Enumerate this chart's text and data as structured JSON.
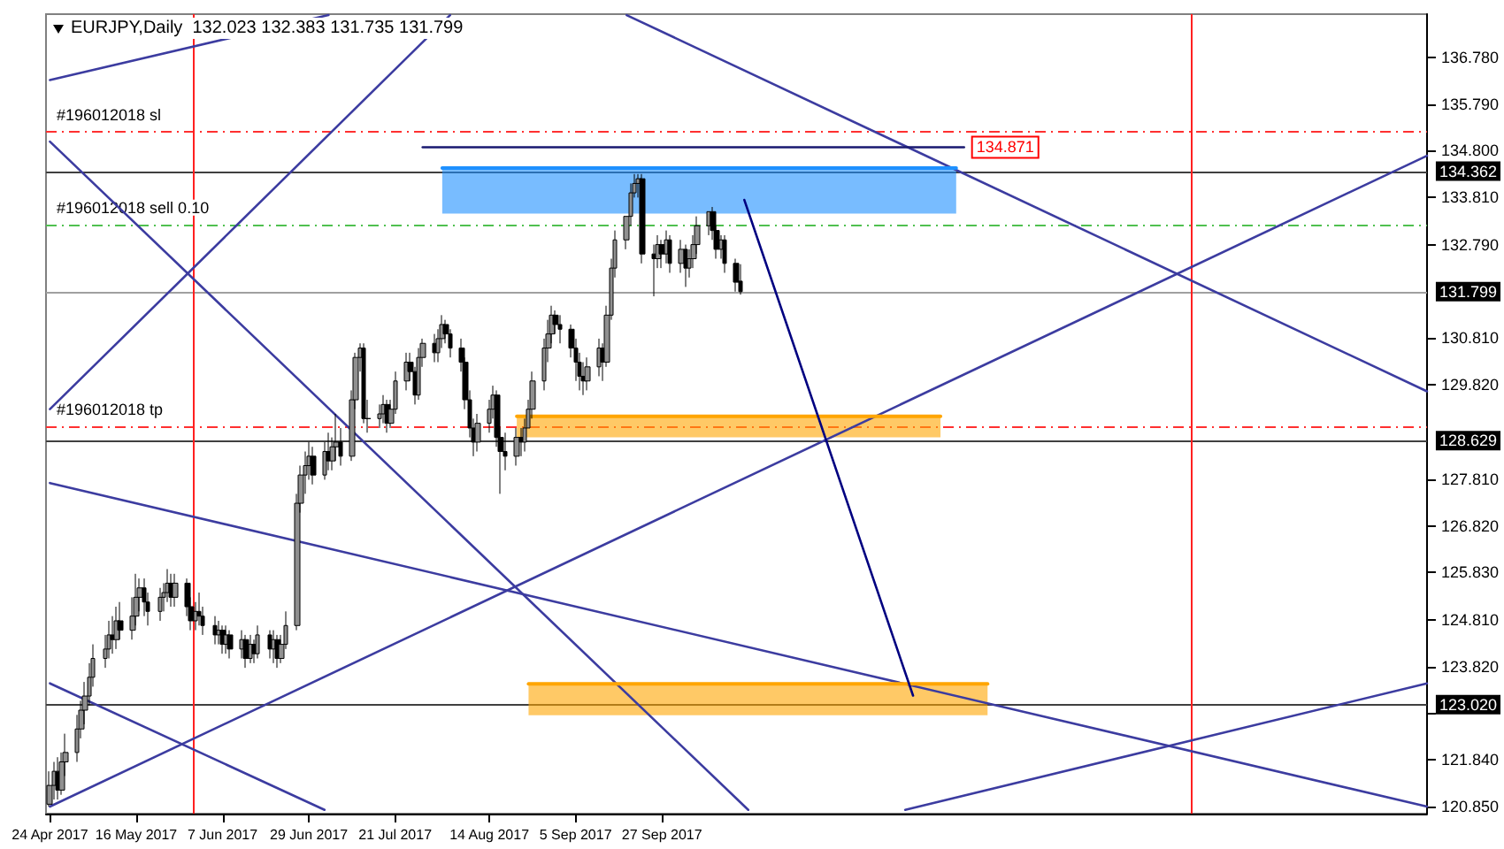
{
  "chart_data": {
    "type": "candlestick",
    "title": "EURJPY,Daily  132.023 132.383 131.735 131.799",
    "x": [
      "2017-04-24",
      "2017-04-25",
      "2017-04-26",
      "2017-04-27",
      "2017-04-28",
      "2017-05-01",
      "2017-05-02",
      "2017-05-03",
      "2017-05-04",
      "2017-05-05",
      "2017-05-08",
      "2017-05-09",
      "2017-05-10",
      "2017-05-11",
      "2017-05-12",
      "2017-05-15",
      "2017-05-16",
      "2017-05-17",
      "2017-05-18",
      "2017-05-19",
      "2017-05-22",
      "2017-05-23",
      "2017-05-24",
      "2017-05-25",
      "2017-05-26",
      "2017-05-29",
      "2017-05-30",
      "2017-05-31",
      "2017-06-01",
      "2017-06-02",
      "2017-06-05",
      "2017-06-06",
      "2017-06-07",
      "2017-06-08",
      "2017-06-09",
      "2017-06-12",
      "2017-06-13",
      "2017-06-14",
      "2017-06-15",
      "2017-06-16",
      "2017-06-19",
      "2017-06-20",
      "2017-06-21",
      "2017-06-22",
      "2017-06-23",
      "2017-06-26",
      "2017-06-27",
      "2017-06-28",
      "2017-06-29",
      "2017-06-30",
      "2017-07-03",
      "2017-07-04",
      "2017-07-05",
      "2017-07-06",
      "2017-07-07",
      "2017-07-10",
      "2017-07-11",
      "2017-07-12",
      "2017-07-13",
      "2017-07-14",
      "2017-07-17",
      "2017-07-18",
      "2017-07-19",
      "2017-07-20",
      "2017-07-21",
      "2017-07-24",
      "2017-07-25",
      "2017-07-26",
      "2017-07-27",
      "2017-07-28",
      "2017-07-31",
      "2017-08-01",
      "2017-08-02",
      "2017-08-03",
      "2017-08-04",
      "2017-08-07",
      "2017-08-08",
      "2017-08-09",
      "2017-08-10",
      "2017-08-11",
      "2017-08-14",
      "2017-08-15",
      "2017-08-16",
      "2017-08-17",
      "2017-08-18",
      "2017-08-21",
      "2017-08-22",
      "2017-08-23",
      "2017-08-24",
      "2017-08-25",
      "2017-08-28",
      "2017-08-29",
      "2017-08-30",
      "2017-08-31",
      "2017-09-01",
      "2017-09-04",
      "2017-09-05",
      "2017-09-06",
      "2017-09-07",
      "2017-09-08",
      "2017-09-11",
      "2017-09-12",
      "2017-09-13",
      "2017-09-14",
      "2017-09-15",
      "2017-09-18",
      "2017-09-19",
      "2017-09-20",
      "2017-09-21",
      "2017-09-22",
      "2017-09-25",
      "2017-09-26",
      "2017-09-27",
      "2017-09-28",
      "2017-09-29",
      "2017-10-02",
      "2017-10-03",
      "2017-10-04",
      "2017-10-05",
      "2017-10-06",
      "2017-10-09",
      "2017-10-10",
      "2017-10-11",
      "2017-10-12",
      "2017-10-13",
      "2017-10-16",
      "2017-10-17"
    ],
    "ohlc": [
      [
        120.9,
        121.6,
        120.85,
        121.3
      ],
      [
        121.3,
        121.8,
        121.0,
        121.6
      ],
      [
        121.6,
        121.9,
        121.0,
        121.2
      ],
      [
        121.2,
        122.0,
        121.1,
        121.8
      ],
      [
        121.8,
        122.4,
        121.5,
        122.0
      ],
      [
        122.0,
        122.8,
        121.8,
        122.5
      ],
      [
        122.5,
        123.1,
        122.3,
        122.9
      ],
      [
        122.9,
        123.5,
        122.6,
        123.2
      ],
      [
        123.2,
        123.9,
        123.0,
        123.6
      ],
      [
        123.6,
        124.3,
        123.4,
        124.0
      ],
      [
        124.0,
        124.5,
        123.8,
        124.2
      ],
      [
        124.2,
        124.8,
        124.0,
        124.5
      ],
      [
        124.5,
        124.9,
        124.1,
        124.4
      ],
      [
        124.4,
        125.1,
        124.2,
        124.8
      ],
      [
        124.8,
        125.2,
        124.4,
        124.6
      ],
      [
        124.6,
        125.3,
        124.4,
        124.9
      ],
      [
        124.9,
        125.8,
        124.7,
        125.3
      ],
      [
        125.3,
        125.7,
        125.0,
        125.5
      ],
      [
        125.5,
        125.7,
        124.9,
        125.2
      ],
      [
        125.2,
        125.4,
        124.7,
        125.0
      ],
      [
        125.0,
        125.5,
        124.8,
        125.3
      ],
      [
        125.3,
        125.6,
        125.0,
        125.4
      ],
      [
        125.4,
        125.9,
        125.2,
        125.6
      ],
      [
        125.6,
        125.8,
        125.1,
        125.3
      ],
      [
        125.3,
        125.8,
        125.1,
        125.6
      ],
      [
        125.6,
        125.7,
        124.9,
        125.1
      ],
      [
        125.1,
        125.3,
        124.6,
        124.8
      ],
      [
        124.8,
        125.2,
        124.6,
        125.0
      ],
      [
        125.0,
        125.4,
        124.7,
        124.9
      ],
      [
        124.9,
        125.1,
        124.5,
        124.7
      ],
      [
        124.7,
        124.9,
        124.3,
        124.5
      ],
      [
        124.5,
        124.8,
        124.3,
        124.6
      ],
      [
        124.6,
        124.7,
        124.1,
        124.3
      ],
      [
        124.3,
        124.7,
        124.1,
        124.5
      ],
      [
        124.5,
        124.6,
        124.0,
        124.2
      ],
      [
        124.2,
        124.6,
        124.0,
        124.4
      ],
      [
        124.4,
        124.5,
        123.8,
        124.0
      ],
      [
        124.0,
        124.5,
        123.9,
        124.3
      ],
      [
        124.3,
        124.4,
        123.9,
        124.1
      ],
      [
        124.1,
        124.7,
        124.0,
        124.5
      ],
      [
        124.5,
        124.6,
        124.0,
        124.2
      ],
      [
        124.2,
        124.6,
        123.9,
        124.4
      ],
      [
        124.4,
        124.5,
        123.8,
        124.0
      ],
      [
        124.0,
        124.5,
        123.9,
        124.3
      ],
      [
        124.3,
        125.0,
        124.2,
        124.7
      ],
      [
        124.7,
        127.5,
        124.6,
        127.3
      ],
      [
        127.3,
        128.1,
        127.1,
        127.9
      ],
      [
        127.9,
        128.4,
        127.5,
        128.1
      ],
      [
        128.1,
        128.6,
        127.8,
        128.3
      ],
      [
        128.3,
        128.5,
        127.7,
        127.9
      ],
      [
        127.9,
        128.6,
        127.8,
        128.4
      ],
      [
        128.4,
        128.8,
        128.0,
        128.2
      ],
      [
        128.2,
        128.7,
        128.0,
        128.5
      ],
      [
        128.5,
        129.2,
        128.2,
        128.6
      ],
      [
        128.6,
        128.9,
        128.1,
        128.3
      ],
      [
        128.3,
        129.7,
        128.2,
        129.5
      ],
      [
        129.5,
        130.5,
        129.3,
        130.4
      ],
      [
        130.4,
        130.7,
        130.1,
        130.6
      ],
      [
        130.6,
        130.7,
        129.0,
        129.1
      ],
      [
        129.1,
        129.5,
        128.8,
        129.1
      ],
      [
        129.1,
        129.4,
        128.9,
        129.2
      ],
      [
        129.2,
        129.6,
        129.0,
        129.4
      ],
      [
        129.4,
        129.5,
        128.8,
        129.0
      ],
      [
        129.0,
        129.5,
        128.9,
        129.3
      ],
      [
        129.3,
        130.1,
        129.2,
        129.9
      ],
      [
        129.9,
        130.5,
        129.7,
        130.3
      ],
      [
        130.3,
        130.5,
        129.9,
        130.1
      ],
      [
        130.1,
        130.2,
        129.4,
        129.6
      ],
      [
        129.6,
        130.6,
        129.5,
        130.4
      ],
      [
        130.4,
        130.8,
        130.2,
        130.7
      ],
      [
        130.7,
        130.9,
        130.3,
        130.5
      ],
      [
        130.5,
        131.0,
        130.3,
        130.8
      ],
      [
        130.8,
        131.3,
        130.6,
        131.1
      ],
      [
        131.1,
        131.2,
        130.7,
        130.9
      ],
      [
        130.9,
        131.0,
        130.4,
        130.6
      ],
      [
        130.6,
        130.8,
        130.1,
        130.3
      ],
      [
        130.3,
        130.4,
        129.3,
        129.5
      ],
      [
        129.5,
        129.7,
        128.7,
        128.9
      ],
      [
        128.9,
        129.1,
        128.3,
        128.6
      ],
      [
        128.6,
        129.2,
        128.4,
        129.0
      ],
      [
        129.0,
        129.5,
        128.8,
        129.3
      ],
      [
        129.3,
        129.8,
        129.1,
        129.6
      ],
      [
        129.6,
        129.7,
        128.5,
        128.7
      ],
      [
        128.7,
        128.9,
        127.5,
        128.4
      ],
      [
        128.4,
        128.8,
        128.0,
        128.3
      ],
      [
        128.3,
        128.9,
        128.1,
        128.7
      ],
      [
        128.7,
        128.9,
        128.3,
        128.6
      ],
      [
        128.6,
        129.1,
        128.4,
        128.9
      ],
      [
        128.9,
        129.5,
        128.9,
        129.3
      ],
      [
        129.3,
        130.1,
        129.1,
        129.9
      ],
      [
        129.9,
        130.8,
        129.7,
        130.6
      ],
      [
        130.6,
        131.2,
        130.3,
        130.9
      ],
      [
        130.9,
        131.5,
        130.7,
        131.3
      ],
      [
        131.3,
        131.4,
        130.9,
        131.1
      ],
      [
        131.1,
        131.3,
        130.7,
        131.0
      ],
      [
        131.0,
        131.1,
        130.4,
        130.6
      ],
      [
        130.6,
        130.8,
        129.9,
        130.3
      ],
      [
        130.3,
        130.5,
        129.7,
        130.0
      ],
      [
        130.0,
        130.3,
        129.6,
        129.9
      ],
      [
        129.9,
        130.4,
        129.7,
        130.2
      ],
      [
        130.2,
        130.8,
        130.0,
        130.6
      ],
      [
        130.6,
        130.7,
        129.9,
        130.3
      ],
      [
        130.3,
        131.5,
        130.2,
        131.3
      ],
      [
        131.3,
        132.5,
        131.2,
        132.3
      ],
      [
        132.3,
        133.1,
        132.1,
        132.9
      ],
      [
        132.9,
        133.4,
        132.7,
        133.4
      ],
      [
        133.4,
        134.1,
        133.2,
        133.9
      ],
      [
        133.9,
        134.3,
        133.8,
        134.1
      ],
      [
        134.1,
        134.3,
        133.8,
        134.2
      ],
      [
        134.2,
        134.3,
        132.4,
        132.6
      ],
      [
        132.6,
        132.8,
        131.7,
        132.5
      ],
      [
        132.5,
        133.0,
        132.3,
        132.8
      ],
      [
        132.8,
        132.9,
        132.3,
        132.6
      ],
      [
        132.6,
        133.1,
        132.4,
        132.9
      ],
      [
        132.9,
        133.0,
        132.2,
        132.4
      ],
      [
        132.4,
        132.9,
        132.2,
        132.7
      ],
      [
        132.7,
        132.8,
        131.9,
        132.3
      ],
      [
        132.3,
        132.7,
        132.1,
        132.5
      ],
      [
        132.5,
        133.0,
        132.3,
        132.8
      ],
      [
        132.8,
        133.4,
        132.6,
        133.2
      ],
      [
        133.2,
        133.5,
        133.0,
        133.5
      ],
      [
        133.5,
        133.6,
        132.9,
        133.1
      ],
      [
        133.1,
        133.2,
        132.5,
        132.7
      ],
      [
        132.7,
        133.0,
        132.5,
        132.9
      ],
      [
        132.9,
        133.0,
        132.2,
        132.4
      ],
      [
        132.4,
        132.5,
        131.8,
        132.0
      ],
      [
        132.023,
        132.383,
        131.735,
        131.799
      ]
    ],
    "series": [
      {
        "type": "line",
        "x": [
          "2017-04-24",
          "2017-07-04"
        ],
        "values": [
          136.3,
          137.68
        ],
        "color": "#3c3ca0"
      },
      {
        "type": "line",
        "x": [
          "2017-04-24",
          "2017-10-19"
        ],
        "values": [
          134.99,
          120.78
        ],
        "color": "#3c3ca0"
      },
      {
        "type": "line",
        "x": [
          "2017-04-24",
          "2017-08-04"
        ],
        "values": [
          129.3,
          137.68
        ],
        "color": "#3c3ca0"
      },
      {
        "type": "line",
        "x": [
          "2017-04-24",
          "2018-04-10"
        ],
        "values": [
          127.73,
          120.85
        ],
        "color": "#3c3ca0"
      },
      {
        "type": "line",
        "x": [
          "2017-04-24",
          "2017-07-03"
        ],
        "values": [
          123.47,
          120.78
        ],
        "color": "#3c3ca0"
      },
      {
        "type": "line",
        "x": [
          "2017-04-24",
          "2018-04-10"
        ],
        "values": [
          120.85,
          134.69
        ],
        "color": "#3c3ca0"
      },
      {
        "type": "line",
        "x": [
          "2017-09-18",
          "2018-04-10"
        ],
        "values": [
          137.68,
          129.68
        ],
        "color": "#3c3ca0"
      },
      {
        "type": "line",
        "x": [
          "2017-11-28",
          "2018-04-10"
        ],
        "values": [
          120.78,
          123.47
        ],
        "color": "#3c3ca0"
      },
      {
        "type": "line",
        "x": [
          "2017-08-02",
          "2017-12-11"
        ],
        "values": [
          134.43,
          134.43
        ],
        "lower": [
          133.46,
          133.46
        ],
        "upper": [
          134.43,
          134.43
        ],
        "color": "#1e90ff"
      },
      {
        "type": "line",
        "x": [
          "2017-08-21",
          "2017-12-07"
        ],
        "values": [
          129.15,
          129.15
        ],
        "lower": [
          128.7,
          128.7
        ],
        "upper": [
          129.15,
          129.15
        ],
        "color": "#ffa500"
      },
      {
        "type": "line",
        "x": [
          "2017-08-24",
          "2017-12-19"
        ],
        "values": [
          123.46,
          123.46
        ],
        "lower": [
          122.79,
          122.79
        ],
        "upper": [
          123.46,
          123.46
        ],
        "color": "#ffa500"
      },
      {
        "type": "line",
        "x": [
          "2017-10-18",
          "2017-11-30"
        ],
        "values": [
          133.75,
          123.21
        ],
        "color": "#000080"
      },
      {
        "type": "line",
        "x": [
          "2017-07-28",
          "2017-12-13"
        ],
        "values": [
          134.871,
          134.871
        ],
        "color": "#191970",
        "value_labels": [
          null,
          "134.871"
        ]
      }
    ],
    "ref_lines": [
      {
        "axis": "y",
        "value": 135.2,
        "label": "#196012018 sl",
        "color": "#ff3030",
        "line_style": "dashed"
      },
      {
        "axis": "y",
        "value": 133.23,
        "label": "#196012018 sell 0.10",
        "color": "#50c050",
        "line_style": "dashed"
      },
      {
        "axis": "y",
        "value": 128.93,
        "label": "#196012018 tp",
        "color": "#ff3030",
        "line_style": "dashed"
      },
      {
        "axis": "y",
        "value": 134.362,
        "label": "134.362",
        "color": "#404040",
        "line_style": "solid"
      },
      {
        "axis": "y",
        "value": 131.799,
        "label": "131.799",
        "color": "#a0a0a0",
        "line_style": "solid"
      },
      {
        "axis": "y",
        "value": 128.629,
        "label": "128.629",
        "color": "#404040",
        "line_style": "solid"
      },
      {
        "axis": "y",
        "value": 123.02,
        "label": "123.020",
        "color": "#404040",
        "line_style": "solid"
      },
      {
        "axis": "x",
        "value": "2017-05-30T12:00",
        "color": "#ff2020",
        "line_style": "solid"
      },
      {
        "axis": "x",
        "value": "2018-02-09",
        "color": "#ff2020",
        "line_style": "solid"
      }
    ],
    "xlim": [
      "2017-04-23",
      "2018-04-10"
    ],
    "xticks": [
      {
        "value": "2017-04-24",
        "label": "24 Apr 2017"
      },
      {
        "value": "2017-05-16",
        "label": "16 May 2017"
      },
      {
        "value": "2017-06-07",
        "label": "7 Jun 2017"
      },
      {
        "value": "2017-06-29",
        "label": "29 Jun 2017"
      },
      {
        "value": "2017-07-21",
        "label": "21 Jul 2017"
      },
      {
        "value": "2017-08-14",
        "label": "14 Aug 2017"
      },
      {
        "value": "2017-09-05",
        "label": "5 Sep 2017"
      },
      {
        "value": "2017-09-27",
        "label": "27 Sep 2017"
      }
    ],
    "ylim": [
      120.7,
      137.7
    ],
    "yticks": [
      {
        "value": 120.85,
        "label": "120.850"
      },
      {
        "value": 121.84,
        "label": "121.840"
      },
      {
        "value": 122.83,
        "label": null
      },
      {
        "value": 123.82,
        "label": "123.820"
      },
      {
        "value": 124.81,
        "label": "124.810"
      },
      {
        "value": 125.83,
        "label": "125.830"
      },
      {
        "value": 126.82,
        "label": "126.820"
      },
      {
        "value": 127.81,
        "label": "127.810"
      },
      {
        "value": 129.82,
        "label": "129.820"
      },
      {
        "value": 130.81,
        "label": "130.810"
      },
      {
        "value": 132.79,
        "label": "132.790"
      },
      {
        "value": 133.81,
        "label": "133.810"
      },
      {
        "value": 134.8,
        "label": "134.800"
      },
      {
        "value": 135.79,
        "label": "135.790"
      },
      {
        "value": 136.78,
        "label": "136.780"
      }
    ],
    "grid": false
  }
}
